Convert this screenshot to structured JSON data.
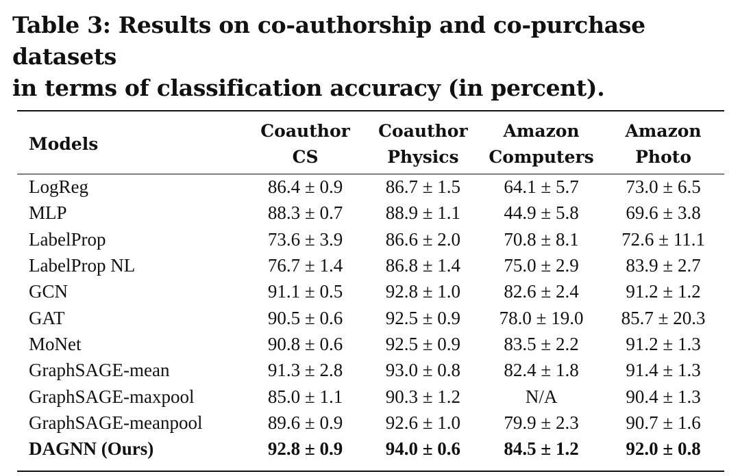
{
  "caption": {
    "line1": "Table 3: Results on co-authorship and co-purchase datasets",
    "line2": "in terms of classification accuracy (in percent)."
  },
  "header": {
    "models": "Models",
    "columns": [
      {
        "line1": "Coauthor",
        "line2": "CS"
      },
      {
        "line1": "Coauthor",
        "line2": "Physics"
      },
      {
        "line1": "Amazon",
        "line2": "Computers"
      },
      {
        "line1": "Amazon",
        "line2": "Photo"
      }
    ]
  },
  "rows": [
    {
      "model": "LogReg",
      "values": [
        "86.4 ± 0.9",
        "86.7 ± 1.5",
        "64.1 ± 5.7",
        "73.0 ± 6.5"
      ]
    },
    {
      "model": "MLP",
      "values": [
        "88.3 ± 0.7",
        "88.9 ± 1.1",
        "44.9 ± 5.8",
        "69.6 ± 3.8"
      ]
    },
    {
      "model": "LabelProp",
      "values": [
        "73.6 ± 3.9",
        "86.6 ± 2.0",
        "70.8 ± 8.1",
        "72.6 ± 11.1"
      ]
    },
    {
      "model": "LabelProp NL",
      "values": [
        "76.7 ± 1.4",
        "86.8 ± 1.4",
        "75.0 ± 2.9",
        "83.9 ± 2.7"
      ]
    },
    {
      "model": "GCN",
      "values": [
        "91.1 ± 0.5",
        "92.8 ± 1.0",
        "82.6 ± 2.4",
        "91.2 ± 1.2"
      ]
    },
    {
      "model": "GAT",
      "values": [
        "90.5 ± 0.6",
        "92.5 ± 0.9",
        "78.0 ± 19.0",
        "85.7 ± 20.3"
      ]
    },
    {
      "model": "MoNet",
      "values": [
        "90.8 ± 0.6",
        "92.5 ± 0.9",
        "83.5 ± 2.2",
        "91.2 ± 1.3"
      ]
    },
    {
      "model": "GraphSAGE-mean",
      "values": [
        "91.3 ± 2.8",
        "93.0 ± 0.8",
        "82.4 ± 1.8",
        "91.4 ± 1.3"
      ]
    },
    {
      "model": "GraphSAGE-maxpool",
      "values": [
        "85.0 ± 1.1",
        "90.3 ± 1.2",
        "N/A",
        "90.4 ± 1.3"
      ]
    },
    {
      "model": "GraphSAGE-meanpool",
      "values": [
        "89.6 ± 0.9",
        "92.6 ± 1.0",
        "79.9 ± 2.3",
        "90.7 ± 1.6"
      ]
    },
    {
      "model": "DAGNN (Ours)",
      "values": [
        "92.8 ± 0.9",
        "94.0 ± 0.6",
        "84.5 ± 1.2",
        "92.0 ± 0.8"
      ]
    }
  ]
}
